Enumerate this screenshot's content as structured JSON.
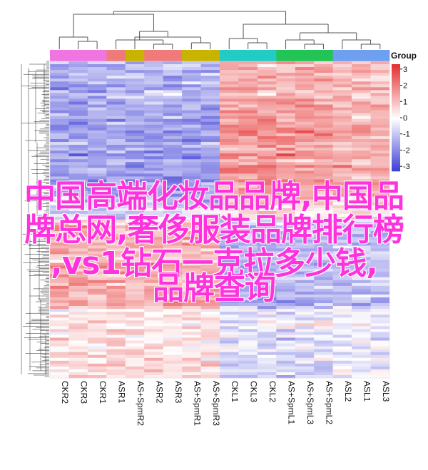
{
  "chart_data": {
    "type": "heatmap",
    "columns": [
      "CKR2",
      "CKR3",
      "CKR1",
      "ASR1",
      "AS+SpmR2",
      "ASR2",
      "ASR3",
      "AS+SpmR1",
      "AS+SpmR3",
      "CKL1",
      "CKL3",
      "CKL2",
      "AS+SpmL1",
      "AS+SpmL3",
      "AS+SpmL2",
      "ASL2",
      "ASL1",
      "ASL3"
    ],
    "legend_title": "Group",
    "scale_ticks": [
      3,
      2,
      1,
      0,
      -1,
      -2,
      -3
    ],
    "scale_range": [
      -3.3,
      3.3
    ],
    "scale_colors": {
      "low": "#3a3ad6",
      "mid": "#ffffff",
      "high": "#e53030"
    },
    "group_colors": [
      "#f075e0",
      "#f07a7a",
      "#c8b400",
      "#22ccc4",
      "#22c455",
      "#6f9ff0"
    ],
    "group_assignment": [
      0,
      0,
      0,
      1,
      2,
      1,
      1,
      2,
      2,
      3,
      3,
      3,
      4,
      4,
      4,
      5,
      5,
      5
    ],
    "column_dendrogram": true,
    "row_dendrogram": true
  },
  "overlay": {
    "line1": "中国高端化妆品品牌,中国品",
    "line2": "牌总网,奢侈服装品牌排行榜",
    "line3": ",vs1钻石一克拉多少钱,",
    "line4": "品牌查询"
  }
}
